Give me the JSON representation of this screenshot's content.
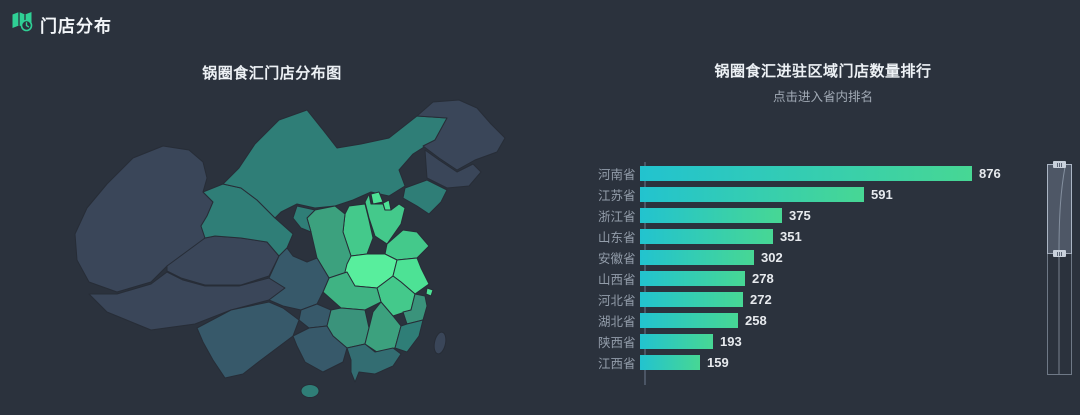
{
  "header": {
    "title": "门店分布",
    "icon": "map-clock-icon",
    "accent_color": "#2fd095"
  },
  "map_panel": {
    "title": "锅圈食汇门店分布图"
  },
  "rank_panel": {
    "title": "锅圈食汇进驻区域门店数量排行",
    "subtitle": "点击进入省内排名"
  },
  "chart_data": [
    {
      "type": "bar",
      "orientation": "horizontal",
      "title": "锅圈食汇进驻区域门店数量排行",
      "subtitle": "点击进入省内排名",
      "categories": [
        "河南省",
        "江苏省",
        "浙江省",
        "山东省",
        "安徽省",
        "山西省",
        "河北省",
        "湖北省",
        "陕西省",
        "江西省"
      ],
      "values": [
        876,
        591,
        375,
        351,
        302,
        278,
        272,
        258,
        193,
        159
      ],
      "value_max": 876,
      "xlim": [
        0,
        900
      ],
      "grid": false,
      "legend": false,
      "bar_gradient": [
        "#22c3cf",
        "#47d794"
      ],
      "datazoom_slider": {
        "position": "right",
        "selected_from_top_fraction": 0.42
      }
    },
    {
      "type": "heatmap",
      "subtype": "china-choropleth-map",
      "title": "锅圈食汇门店分布图",
      "series": [
        {
          "name": "河南",
          "value": 876
        },
        {
          "name": "江苏",
          "value": 591
        },
        {
          "name": "浙江",
          "value": 375
        },
        {
          "name": "山东",
          "value": 351
        },
        {
          "name": "安徽",
          "value": 302
        },
        {
          "name": "山西",
          "value": 278
        },
        {
          "name": "河北",
          "value": 272
        },
        {
          "name": "湖北",
          "value": 258
        },
        {
          "name": "陕西",
          "value": 193
        },
        {
          "name": "江西",
          "value": 159
        }
      ]
    }
  ],
  "map": {
    "palette": {
      "max": "#58ee9d",
      "vhigh": "#4de295",
      "high": "#44c98b",
      "mid_high": "#3fb383",
      "mid": "#3ca17e",
      "mid_low": "#3a937b",
      "low": "#2f7e77",
      "vlow": "#336d72",
      "dim": "#37596a",
      "none": "#3a4659"
    },
    "region_levels": {
      "xinjiang": "none",
      "tibet": "none",
      "qinghai": "none",
      "heilongjiang": "none",
      "jilin": "none",
      "taiwan": "none",
      "gansu": "low",
      "inner-mongolia": "low",
      "liaoning": "low",
      "ningxia": "low",
      "hainan": "low",
      "fujian": "low",
      "guangdong": "vlow",
      "guangxi": "dim",
      "guizhou": "dim",
      "sichuan": "dim",
      "yunnan": "dim",
      "hunan": "mid_low",
      "zhejiang": "mid_low",
      "shaanxi": "mid",
      "jiangxi": "mid",
      "hubei": "mid_high",
      "shanxi": "high",
      "hebei": "high",
      "shandong": "high",
      "anhui": "high",
      "beijing": "vhigh",
      "tianjin": "vhigh",
      "jiangsu": "vhigh",
      "henan": "max"
    }
  },
  "colors": {
    "background": "#2b323d",
    "title_text": "#edf1f5",
    "subtitle_text": "#a2abb6",
    "axis_label": "#939daa",
    "value_label": "#e7eaee",
    "axis_line": "#4b5565"
  }
}
